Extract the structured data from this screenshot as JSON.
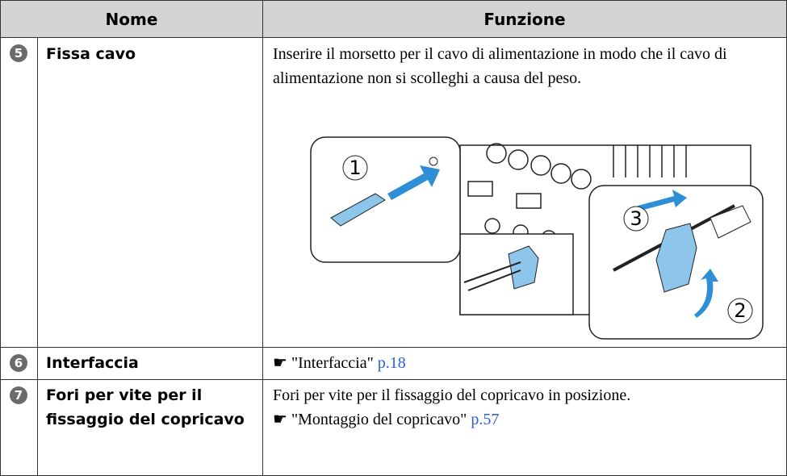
{
  "table": {
    "header": [
      "Nome",
      "Funzione"
    ],
    "rows": [
      {
        "number": "5",
        "name": "Fissa cavo",
        "text": "Inserire il morsetto per il cavo di alimentazione in modo che il cavo di alimentazione non si scolleghi a causa del peso.",
        "figure_steps": [
          "1",
          "2",
          "3"
        ]
      },
      {
        "number": "6",
        "name": "Interfaccia",
        "ref": "\"Interfaccia\"",
        "link": "p.18"
      },
      {
        "number": "7",
        "name": "Fori per vite per il fissaggio del copricavo",
        "text": "Fori per vite per il fissaggio del copricavo in posizione.",
        "ref": "\"Montaggio del copricavo\"",
        "link": "p.57"
      }
    ]
  }
}
